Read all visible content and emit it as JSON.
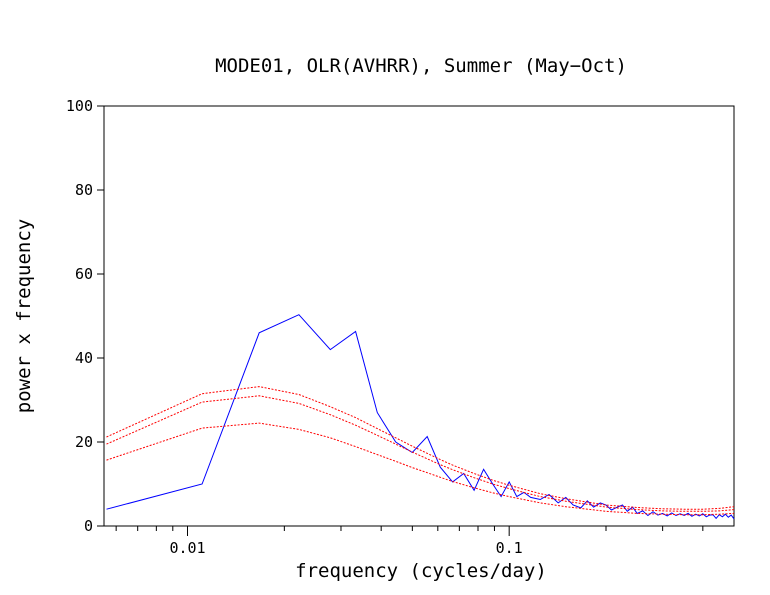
{
  "chart_data": {
    "type": "line",
    "title": "MODE01, OLR(AVHRR), Summer (May−Oct)",
    "xlabel": "frequency (cycles/day)",
    "ylabel": "power x frequency",
    "xscale": "log",
    "xlim": [
      0.0055,
      0.5
    ],
    "ylim": [
      0,
      100
    ],
    "yticks": [
      0,
      20,
      40,
      60,
      80,
      100
    ],
    "ytick_labels": [
      "0",
      "20",
      "40",
      "60",
      "80",
      "100"
    ],
    "xticks_major": [
      0.01,
      0.1
    ],
    "xtick_labels": [
      "0.01",
      "0.1"
    ],
    "xticks_minor": [
      0.006,
      0.007,
      0.008,
      0.009,
      0.02,
      0.03,
      0.04,
      0.05,
      0.06,
      0.07,
      0.08,
      0.09,
      0.2,
      0.3,
      0.4
    ],
    "grid": false,
    "legend": "none",
    "series": [
      {
        "color": "#0000ff",
        "style": "solid",
        "x": [
          0.0056,
          0.0111,
          0.0167,
          0.0222,
          0.0278,
          0.0333,
          0.0389,
          0.0444,
          0.05,
          0.0556,
          0.0611,
          0.0667,
          0.0722,
          0.0778,
          0.0833,
          0.0889,
          0.0944,
          0.1,
          0.1056,
          0.1111,
          0.1167,
          0.125,
          0.133,
          0.142,
          0.15,
          0.158,
          0.167,
          0.175,
          0.183,
          0.192,
          0.2,
          0.208,
          0.217,
          0.225,
          0.233,
          0.242,
          0.25,
          0.26,
          0.27,
          0.28,
          0.29,
          0.3,
          0.31,
          0.32,
          0.33,
          0.34,
          0.35,
          0.36,
          0.37,
          0.38,
          0.39,
          0.4,
          0.41,
          0.42,
          0.43,
          0.44,
          0.45,
          0.46,
          0.47,
          0.48,
          0.49,
          0.5
        ],
        "y": [
          4,
          10,
          46,
          50.3,
          42,
          46.3,
          27,
          20,
          17.5,
          21.3,
          14,
          10.5,
          12.5,
          8.5,
          13.5,
          10,
          7,
          10.5,
          7,
          8,
          6.8,
          6.3,
          7.5,
          5.5,
          6.8,
          5,
          4.3,
          6,
          4.5,
          5.5,
          5,
          3.8,
          4.5,
          5,
          3.5,
          4.5,
          3,
          3.6,
          2.5,
          3.4,
          2.6,
          3,
          2.4,
          3.1,
          2.5,
          2.9,
          2.5,
          3,
          2.3,
          2.8,
          2.4,
          2.9,
          2.2,
          2.6,
          2.7,
          1.8,
          2.7,
          2.2,
          2.8,
          2.1,
          2.6,
          1.7
        ]
      },
      {
        "color": "#ff0000",
        "style": "dotted",
        "x": [
          0.0056,
          0.0111,
          0.0167,
          0.0222,
          0.0278,
          0.0333,
          0.0389,
          0.0444,
          0.05,
          0.0556,
          0.0611,
          0.0667,
          0.0778,
          0.0889,
          0.1,
          0.125,
          0.15,
          0.2,
          0.25,
          0.3,
          0.35,
          0.4,
          0.45,
          0.5
        ],
        "y": [
          15.7,
          23.3,
          24.5,
          23,
          21,
          18.9,
          17,
          15.4,
          13.9,
          12.7,
          11.6,
          10.6,
          9.1,
          7.9,
          7.0,
          5.5,
          4.6,
          3.5,
          3.0,
          2.8,
          2.7,
          2.7,
          2.8,
          3.0
        ]
      },
      {
        "color": "#ff0000",
        "style": "dotted",
        "x": [
          0.0056,
          0.0111,
          0.0167,
          0.0222,
          0.0278,
          0.0333,
          0.0389,
          0.0444,
          0.05,
          0.0556,
          0.0611,
          0.0667,
          0.0778,
          0.0889,
          0.1,
          0.125,
          0.15,
          0.2,
          0.25,
          0.3,
          0.35,
          0.4,
          0.45,
          0.5
        ],
        "y": [
          19.5,
          29.5,
          31,
          29.2,
          26.5,
          24,
          21.6,
          19.5,
          17.6,
          16,
          14.6,
          13.4,
          11.5,
          10,
          8.9,
          7.0,
          5.9,
          4.5,
          3.9,
          3.6,
          3.5,
          3.5,
          3.6,
          3.9
        ]
      },
      {
        "color": "#ff0000",
        "style": "dotted",
        "x": [
          0.0056,
          0.0111,
          0.0167,
          0.0222,
          0.0278,
          0.0333,
          0.0389,
          0.0444,
          0.05,
          0.0556,
          0.0611,
          0.0667,
          0.0778,
          0.0889,
          0.1,
          0.125,
          0.15,
          0.2,
          0.25,
          0.3,
          0.35,
          0.4,
          0.45,
          0.5
        ],
        "y": [
          21.2,
          31.5,
          33.2,
          31.3,
          28.4,
          25.8,
          23.2,
          21,
          19,
          17.3,
          15.8,
          14.5,
          12.5,
          10.9,
          9.7,
          7.7,
          6.5,
          5.0,
          4.4,
          4.1,
          4.0,
          4.0,
          4.2,
          4.6
        ]
      }
    ]
  }
}
